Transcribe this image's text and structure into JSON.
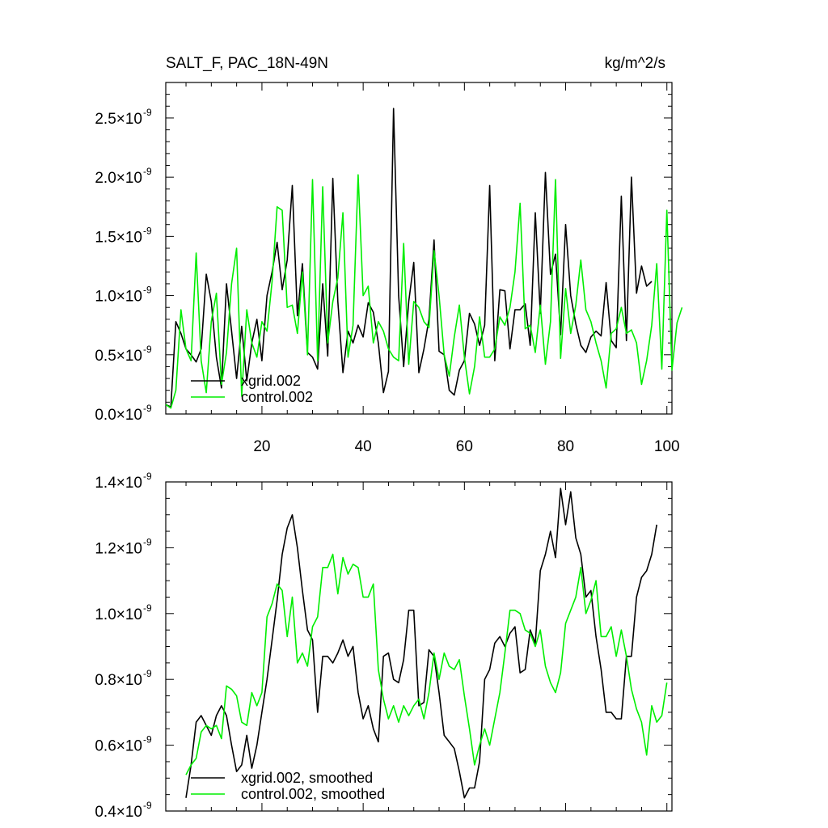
{
  "header": {
    "title": "SALT_F, PAC_18N-49N",
    "units": "kg/m^2/s"
  },
  "colors": {
    "xgrid": "#000000",
    "control": "#00ee00"
  },
  "chart_data": [
    {
      "type": "line",
      "title": "SALT_F, PAC_18N-49N",
      "units_label": "kg/m^2/s",
      "xlabel": "",
      "ylabel": "",
      "xlim": [
        1,
        101
      ],
      "ylim": [
        0.0,
        2.8
      ],
      "xticks": [
        20,
        40,
        60,
        80,
        100
      ],
      "yticks": [
        0.0,
        0.5,
        1.0,
        1.5,
        2.0,
        2.5
      ],
      "ytick_labels": [
        {
          "mantissa": "0.0",
          "base": "×10",
          "exp": "-9"
        },
        {
          "mantissa": "0.5",
          "base": "×10",
          "exp": "-9"
        },
        {
          "mantissa": "1.0",
          "base": "×10",
          "exp": "-9"
        },
        {
          "mantissa": "1.5",
          "base": "×10",
          "exp": "-9"
        },
        {
          "mantissa": "2.0",
          "base": "×10",
          "exp": "-9"
        },
        {
          "mantissa": "2.5",
          "base": "×10",
          "exp": "-9"
        }
      ],
      "y_scale": "1e-9",
      "legend": "bottom-left",
      "series": [
        {
          "name": "xgrid.002",
          "color": "#000000",
          "x_start": 1,
          "values": [
            0.08,
            0.06,
            0.78,
            0.68,
            0.55,
            0.5,
            0.44,
            0.55,
            1.18,
            0.95,
            0.48,
            0.22,
            1.1,
            0.7,
            0.3,
            0.74,
            0.28,
            0.6,
            0.8,
            0.45,
            1.0,
            1.2,
            1.45,
            1.05,
            1.3,
            1.93,
            0.83,
            1.27,
            0.52,
            0.48,
            0.38,
            1.1,
            0.49,
            1.99,
            0.95,
            0.35,
            0.7,
            0.6,
            0.75,
            0.65,
            0.94,
            0.86,
            0.6,
            0.18,
            0.36,
            2.58,
            1.0,
            0.4,
            0.95,
            1.28,
            0.35,
            0.55,
            0.8,
            1.47,
            0.53,
            0.5,
            0.2,
            0.16,
            0.37,
            0.45,
            0.85,
            0.76,
            0.58,
            0.75,
            1.93,
            0.45,
            1.05,
            1.04,
            0.55,
            0.88,
            0.88,
            0.93,
            0.58,
            1.7,
            0.85,
            2.04,
            1.18,
            1.35,
            0.67,
            1.6,
            1.0,
            0.76,
            0.58,
            0.52,
            0.65,
            0.7,
            0.66,
            1.11,
            0.62,
            0.56,
            1.84,
            0.62,
            2.0,
            1.02,
            1.25,
            1.08,
            1.12
          ],
          "smoothed": false
        },
        {
          "name": "control.002",
          "color": "#00ee00",
          "x_start": 1,
          "values": [
            0.08,
            0.05,
            0.2,
            0.88,
            0.55,
            0.45,
            1.36,
            0.45,
            0.18,
            0.78,
            1.02,
            0.25,
            0.52,
            1.1,
            1.4,
            0.15,
            0.88,
            0.6,
            0.48,
            0.78,
            0.7,
            1.12,
            1.75,
            1.72,
            0.9,
            0.92,
            0.68,
            1.2,
            0.5,
            1.98,
            0.45,
            1.92,
            0.6,
            0.95,
            1.15,
            1.7,
            0.48,
            0.75,
            2.02,
            1.0,
            1.08,
            0.6,
            0.78,
            0.7,
            0.55,
            0.48,
            0.45,
            1.44,
            0.42,
            0.95,
            0.9,
            0.78,
            0.73,
            1.38,
            1.0,
            0.5,
            0.32,
            0.65,
            0.92,
            0.48,
            0.17,
            0.4,
            0.82,
            0.48,
            0.48,
            0.55,
            0.82,
            0.75,
            0.9,
            1.2,
            1.78,
            0.72,
            0.75,
            0.52,
            0.92,
            0.42,
            0.78,
            1.98,
            0.47,
            1.06,
            0.68,
            0.92,
            1.3,
            0.88,
            0.78,
            0.6,
            0.45,
            0.22,
            0.68,
            0.72,
            0.9,
            0.68,
            0.71,
            0.6,
            0.25,
            0.45,
            0.75,
            1.27,
            0.38,
            1.72,
            0.37,
            0.77,
            0.9
          ],
          "smoothed": false
        }
      ]
    },
    {
      "type": "line",
      "title": "",
      "xlabel": "",
      "ylabel": "",
      "xlim": [
        1,
        101
      ],
      "ylim": [
        0.4,
        1.4
      ],
      "xticks": [
        20,
        40,
        60,
        80,
        100
      ],
      "yticks": [
        0.4,
        0.6,
        0.8,
        1.0,
        1.2,
        1.4
      ],
      "ytick_labels": [
        {
          "mantissa": "0.4",
          "base": "×10",
          "exp": "-9"
        },
        {
          "mantissa": "0.6",
          "base": "×10",
          "exp": "-9"
        },
        {
          "mantissa": "0.8",
          "base": "×10",
          "exp": "-9"
        },
        {
          "mantissa": "1.0",
          "base": "×10",
          "exp": "-9"
        },
        {
          "mantissa": "1.2",
          "base": "×10",
          "exp": "-9"
        },
        {
          "mantissa": "1.4",
          "base": "×10",
          "exp": "-9"
        }
      ],
      "y_scale": "1e-9",
      "legend": "bottom-left",
      "series": [
        {
          "name": "xgrid.002, smoothed",
          "color": "#000000",
          "x_start": 5,
          "values": [
            0.44,
            0.54,
            0.67,
            0.69,
            0.66,
            0.63,
            0.69,
            0.72,
            0.69,
            0.6,
            0.52,
            0.54,
            0.63,
            0.53,
            0.6,
            0.7,
            0.8,
            0.92,
            1.04,
            1.18,
            1.26,
            1.3,
            1.2,
            1.07,
            0.95,
            0.92,
            0.7,
            0.87,
            0.87,
            0.85,
            0.88,
            0.92,
            0.87,
            0.9,
            0.76,
            0.68,
            0.72,
            0.65,
            0.61,
            0.87,
            0.88,
            0.8,
            0.79,
            0.86,
            1.01,
            1.01,
            0.72,
            0.73,
            0.89,
            0.87,
            0.76,
            0.63,
            0.61,
            0.59,
            0.52,
            0.44,
            0.47,
            0.47,
            0.55,
            0.8,
            0.83,
            0.91,
            0.93,
            0.9,
            0.94,
            0.96,
            0.82,
            0.83,
            0.95,
            0.91,
            1.13,
            1.18,
            1.25,
            1.17,
            1.38,
            1.27,
            1.37,
            1.23,
            1.18,
            1.05,
            1.07,
            0.93,
            0.83,
            0.7,
            0.7,
            0.68,
            0.68,
            0.87,
            0.87,
            1.05,
            1.11,
            1.13,
            1.18,
            1.27
          ]
        },
        {
          "name": "control.002, smoothed",
          "color": "#00ee00",
          "x_start": 5,
          "values": [
            0.51,
            0.54,
            0.56,
            0.64,
            0.66,
            0.65,
            0.66,
            0.62,
            0.78,
            0.77,
            0.75,
            0.67,
            0.66,
            0.76,
            0.72,
            0.76,
            0.99,
            1.03,
            1.09,
            1.07,
            0.93,
            1.05,
            0.85,
            0.88,
            0.84,
            0.96,
            0.99,
            1.14,
            1.14,
            1.18,
            1.06,
            1.17,
            1.12,
            1.15,
            1.14,
            1.05,
            1.05,
            1.09,
            0.83,
            0.74,
            0.68,
            0.72,
            0.67,
            0.72,
            0.69,
            0.72,
            0.74,
            0.68,
            0.76,
            0.88,
            0.8,
            0.88,
            0.84,
            0.83,
            0.86,
            0.75,
            0.65,
            0.54,
            0.6,
            0.65,
            0.6,
            0.68,
            0.76,
            0.88,
            1.01,
            1.01,
            1.0,
            0.95,
            0.94,
            0.9,
            0.95,
            0.84,
            0.79,
            0.76,
            0.82,
            0.97,
            1.01,
            1.05,
            1.14,
            1.0,
            1.04,
            1.1,
            0.93,
            0.93,
            0.96,
            0.87,
            0.95,
            0.87,
            0.77,
            0.71,
            0.67,
            0.57,
            0.72,
            0.67,
            0.69,
            0.79
          ]
        }
      ]
    }
  ]
}
